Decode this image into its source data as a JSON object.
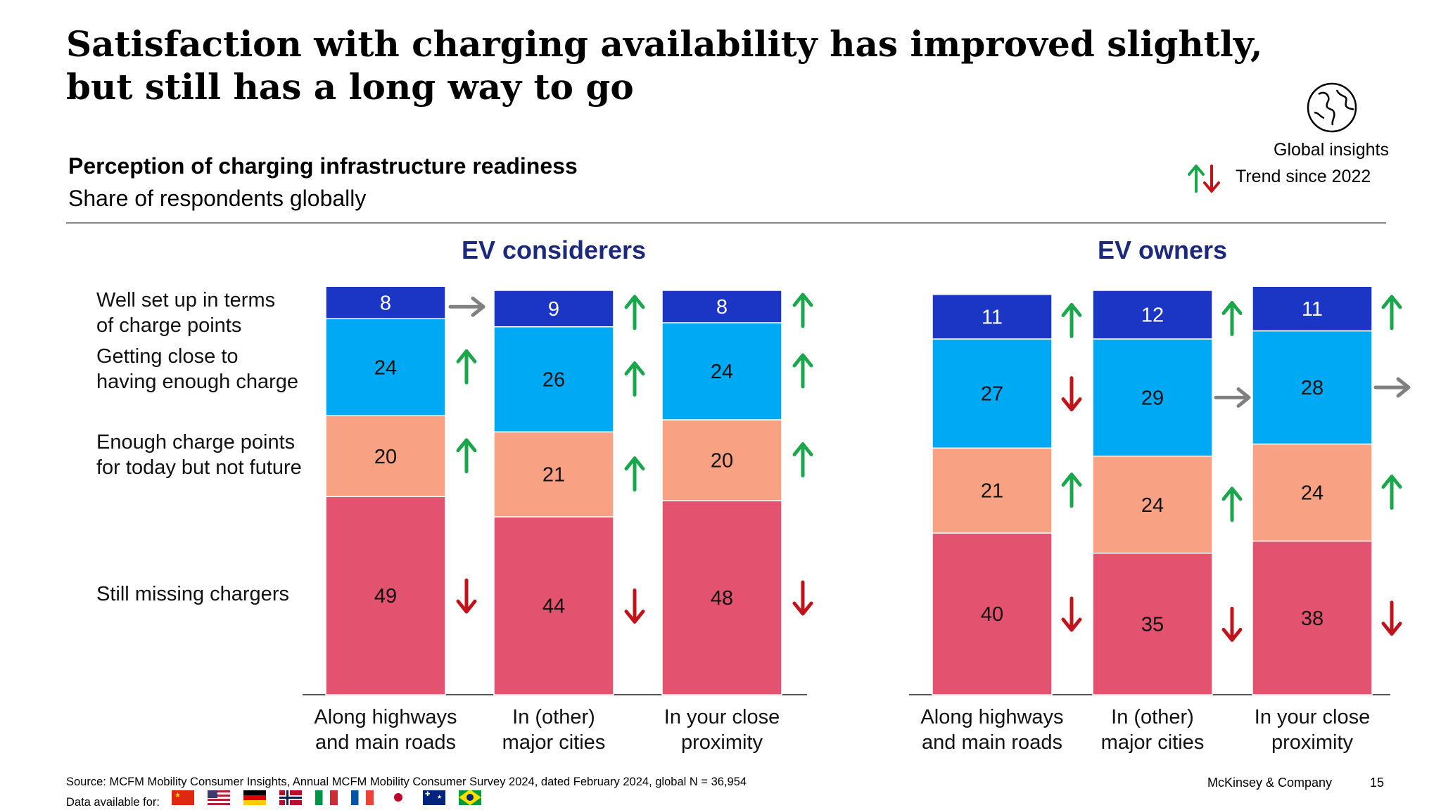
{
  "title": "Satisfaction with charging availability has improved slightly, but still has a long way to go",
  "subtitle": "Perception of charging infrastructure readiness",
  "subsubtitle": "Share of respondents globally",
  "legend": {
    "global_insights": "Global insights",
    "trend": "Trend since 2022",
    "globe_icon": "globe-icon",
    "up_color": "#1aa64a",
    "down_color": "#c0131a",
    "flat_color": "#808080"
  },
  "footer": {
    "source": "Source: MCFM Mobility Consumer Insights, Annual MCFM Mobility Consumer Survey 2024, dated February 2024, global N = 36,954",
    "data_available": "Data available for:",
    "flags": [
      "China",
      "United States",
      "Germany",
      "Norway",
      "Italy",
      "France",
      "Japan",
      "Australia",
      "Brazil"
    ],
    "brand": "McKinsey & Company",
    "page": "15"
  },
  "chart_data": [
    {
      "type": "bar",
      "stacked": true,
      "title": "EV considerers",
      "categories": [
        "Along highways\nand main roads",
        "In (other)\nmajor cities",
        "In your close\nproximity"
      ],
      "series": [
        {
          "name": "Still missing chargers",
          "values": [
            49,
            44,
            48
          ],
          "color": "#e3526e",
          "trend": [
            "down",
            "down",
            "down"
          ]
        },
        {
          "name": "Enough charge points for today but not future",
          "values": [
            20,
            21,
            20
          ],
          "color": "#f8a283",
          "trend": [
            "up",
            "up",
            "up"
          ]
        },
        {
          "name": "Getting close to having enough charge",
          "values": [
            24,
            26,
            24
          ],
          "color": "#00a9f4",
          "trend": [
            "up",
            "up",
            "up"
          ]
        },
        {
          "name": "Well set up in terms of charge points",
          "values": [
            8,
            9,
            8
          ],
          "color": "#1b35c4",
          "trend": [
            "flat",
            "up",
            "up"
          ]
        }
      ]
    },
    {
      "type": "bar",
      "stacked": true,
      "title": "EV owners",
      "categories": [
        "Along highways\nand main roads",
        "In (other)\nmajor cities",
        "In your close\nproximity"
      ],
      "series": [
        {
          "name": "Still missing chargers",
          "values": [
            40,
            35,
            38
          ],
          "color": "#e3526e",
          "trend": [
            "down",
            "down",
            "down"
          ]
        },
        {
          "name": "Enough charge points for today but not future",
          "values": [
            21,
            24,
            24
          ],
          "color": "#f8a283",
          "trend": [
            "up",
            "up",
            "up"
          ]
        },
        {
          "name": "Getting close to having enough charge",
          "values": [
            27,
            29,
            28
          ],
          "color": "#00a9f4",
          "trend": [
            "down",
            "flat",
            "flat"
          ]
        },
        {
          "name": "Well set up in terms of charge points",
          "values": [
            11,
            12,
            11
          ],
          "color": "#1b35c4",
          "trend": [
            "up",
            "up",
            "up"
          ]
        }
      ]
    }
  ],
  "row_labels": [
    {
      "lines": [
        "Well set up in terms",
        "of charge points"
      ]
    },
    {
      "lines": [
        "Getting close to",
        "having enough charge"
      ]
    },
    {
      "lines": [
        "Enough charge points",
        "for today but not future"
      ]
    },
    {
      "lines": [
        "Still missing chargers"
      ]
    }
  ]
}
